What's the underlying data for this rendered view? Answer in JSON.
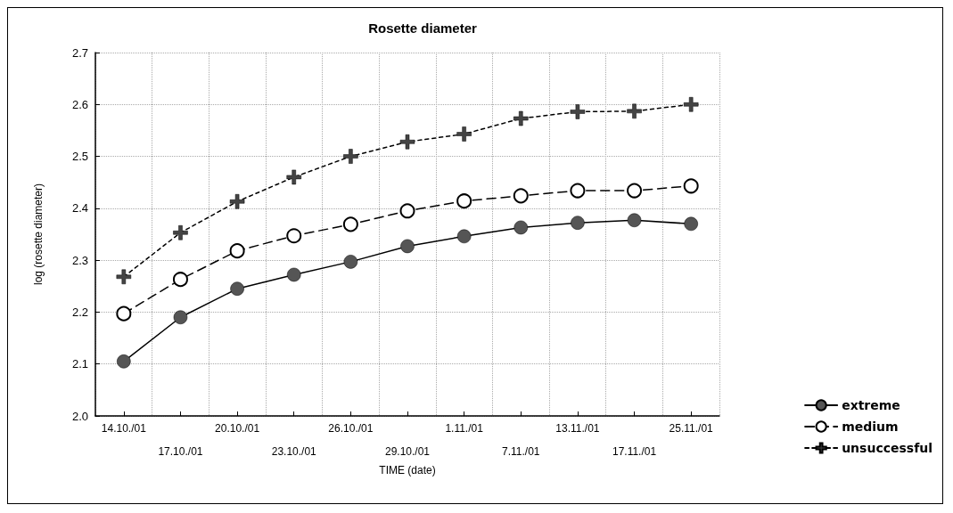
{
  "chart_data": {
    "type": "line",
    "title": "Rosette diameter",
    "xlabel": "TIME (date)",
    "ylabel": "log (rosette diameter)",
    "categories": [
      "14.10./01",
      "17.10./01",
      "20.10./01",
      "23.10./01",
      "26.10./01",
      "29.10./01",
      "1.11./01",
      "7.11./01",
      "13.11./01",
      "17.11./01",
      "25.11./01"
    ],
    "series": [
      {
        "name": "extreme",
        "color": "#555555",
        "marker": "circle",
        "line_style": "solid",
        "values": [
          2.105,
          2.19,
          2.245,
          2.272,
          2.297,
          2.327,
          2.346,
          2.363,
          2.372,
          2.377,
          2.37
        ]
      },
      {
        "name": "medium",
        "color": "#000000",
        "marker": "circle_open",
        "line_style": "dashed",
        "values": [
          2.197,
          2.263,
          2.318,
          2.347,
          2.369,
          2.395,
          2.414,
          2.424,
          2.434,
          2.434,
          2.443
        ]
      },
      {
        "name": "unsuccessful",
        "color": "#444444",
        "marker": "cross",
        "line_style": "dotted",
        "values": [
          2.268,
          2.353,
          2.413,
          2.46,
          2.5,
          2.528,
          2.543,
          2.573,
          2.586,
          2.587,
          2.6
        ]
      }
    ],
    "ylim": [
      2.0,
      2.7
    ],
    "yticks": [
      {
        "value": 2.0,
        "label": "2.0"
      },
      2.1,
      2.2,
      2.3,
      2.4,
      2.5,
      2.6,
      2.7
    ],
    "grid": true,
    "legend": "bottom right"
  }
}
